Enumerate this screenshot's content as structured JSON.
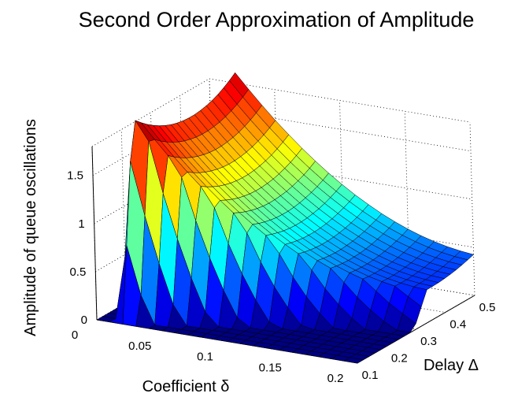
{
  "chart_data": {
    "type": "surface",
    "title": "Second Order Approximation of Amplitude",
    "xlabel": "Coefficient δ",
    "ylabel": "Delay Δ",
    "zlabel": "Amplitude of queue oscillations",
    "x_ticks": [
      "0",
      "0.05",
      "0.1",
      "0.15",
      "0.2"
    ],
    "y_ticks": [
      "0.1",
      "0.2",
      "0.3",
      "0.4",
      "0.5"
    ],
    "z_ticks": [
      "0",
      "0.5",
      "1",
      "1.5"
    ],
    "xlim": [
      0,
      0.2
    ],
    "ylim": [
      0.1,
      0.5
    ],
    "zlim": [
      0,
      1.8
    ],
    "grid": true,
    "colormap": "jet",
    "x": [
      0.0,
      0.01,
      0.02,
      0.03,
      0.04,
      0.05,
      0.06,
      0.07,
      0.08,
      0.09,
      0.1,
      0.11,
      0.12,
      0.13,
      0.14,
      0.15,
      0.16,
      0.17,
      0.18,
      0.19,
      0.2
    ],
    "y": [
      0.1,
      0.12,
      0.14,
      0.16,
      0.18,
      0.2,
      0.22,
      0.24,
      0.26,
      0.28,
      0.3,
      0.32,
      0.34,
      0.36,
      0.38,
      0.4,
      0.42,
      0.44,
      0.46,
      0.48,
      0.5
    ],
    "z": [
      [
        0,
        0,
        0,
        0,
        0,
        0,
        0,
        0,
        0,
        0,
        0,
        0,
        0,
        0,
        0,
        0,
        0,
        0,
        0,
        0,
        0
      ],
      [
        0,
        0,
        0,
        0,
        0,
        0,
        0,
        0,
        0,
        0,
        0,
        0,
        0,
        0,
        0,
        0,
        0,
        0,
        0,
        0,
        0
      ],
      [
        0,
        0,
        0,
        0,
        0,
        0,
        0,
        0,
        0,
        0,
        0,
        0,
        0,
        0,
        0,
        0,
        0,
        0,
        0,
        0,
        0
      ],
      [
        0,
        0,
        0,
        0,
        0,
        0,
        0,
        0,
        0,
        0,
        0,
        0,
        0,
        0,
        0,
        0,
        0,
        0,
        0,
        0,
        0
      ],
      [
        0,
        0,
        0,
        0,
        0,
        0,
        0,
        0,
        0,
        0,
        0,
        0,
        0,
        0,
        0,
        0,
        0,
        0,
        0,
        0,
        0
      ],
      [
        0,
        0,
        0,
        0,
        0,
        0,
        0,
        0,
        0,
        0,
        0,
        0,
        0,
        0,
        0,
        0,
        0,
        0,
        0,
        0,
        0
      ],
      [
        0,
        0,
        0,
        0,
        0,
        0,
        0,
        0,
        0,
        0,
        0,
        0,
        0,
        0,
        0,
        0,
        0,
        0,
        0,
        0,
        0
      ],
      [
        0,
        0,
        0,
        0,
        0,
        0,
        0,
        0,
        0,
        0,
        0,
        0,
        0,
        0,
        0,
        0,
        0,
        0,
        0,
        0,
        0
      ],
      [
        0,
        0,
        0,
        0,
        0,
        0,
        0,
        0,
        0,
        0,
        0,
        0,
        0,
        0,
        0,
        0,
        0,
        0,
        0,
        0,
        0
      ],
      [
        0,
        0,
        0,
        0,
        0,
        0,
        0,
        0,
        0,
        0,
        0,
        0,
        0,
        0,
        0,
        0,
        0,
        0,
        0,
        0,
        0
      ],
      [
        0,
        0,
        0,
        0,
        0,
        0,
        0,
        0,
        0,
        0,
        0,
        0,
        0,
        0,
        0,
        0,
        0,
        0,
        0,
        0,
        0
      ],
      [
        0,
        0,
        0,
        0,
        0,
        0,
        0,
        0,
        0,
        0,
        0,
        0,
        0,
        0,
        0,
        0,
        0,
        0,
        0,
        0,
        0
      ],
      [
        0,
        0,
        0,
        0,
        0,
        0,
        0,
        0,
        0,
        0,
        0,
        0,
        0,
        0,
        0,
        0,
        0,
        0,
        0,
        0,
        0
      ],
      [
        0,
        0,
        0,
        0,
        0,
        0,
        0,
        0,
        0,
        0,
        0,
        0,
        0,
        0,
        0,
        0,
        0,
        0,
        0,
        0,
        0
      ],
      [
        0,
        0,
        0,
        0,
        0,
        0,
        0,
        0,
        0,
        0,
        0,
        0,
        0,
        0,
        0,
        0,
        0,
        0,
        0,
        0,
        0
      ],
      [
        0,
        0,
        0,
        0,
        0,
        0,
        0,
        0,
        0,
        0,
        0,
        0,
        0,
        0,
        0,
        0,
        0,
        0,
        0,
        0,
        0
      ],
      [
        0,
        0,
        0,
        0,
        0,
        0,
        0,
        0,
        0,
        0,
        0,
        0,
        0,
        0,
        0,
        0,
        0,
        0,
        0,
        0,
        0
      ],
      [
        0,
        0,
        0,
        0,
        0,
        0,
        0,
        0,
        0,
        0,
        0,
        0,
        0,
        0,
        0,
        0,
        0,
        0,
        0,
        0,
        0
      ],
      [
        0,
        0,
        0,
        0,
        0,
        0,
        0,
        0,
        0,
        0,
        0,
        0,
        0,
        0,
        0,
        0,
        0,
        0,
        0,
        0,
        0
      ],
      [
        0,
        0,
        0,
        0,
        0,
        0,
        0,
        0,
        0,
        0,
        0,
        0,
        0,
        0,
        0,
        0,
        0,
        0,
        0,
        0,
        0
      ],
      [
        0,
        0,
        0,
        0,
        0,
        0,
        0,
        0,
        0,
        0,
        0,
        0,
        0,
        0,
        0,
        0,
        0,
        0,
        0,
        0,
        0
      ]
    ]
  }
}
